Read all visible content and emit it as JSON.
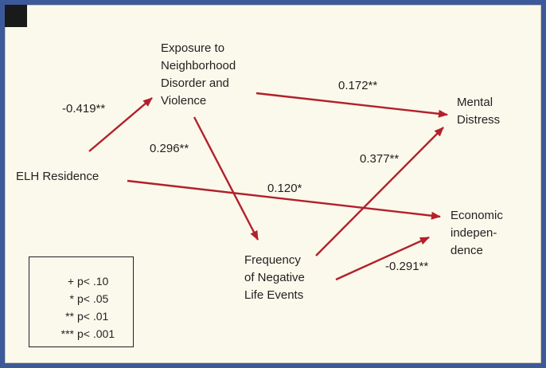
{
  "nodes": {
    "elh_residence": {
      "lines": [
        "ELH Residence"
      ]
    },
    "exposure": {
      "lines": [
        "Exposure to",
        "Neighborhood",
        "Disorder and",
        "Violence"
      ]
    },
    "mental_distress": {
      "lines": [
        "Mental",
        "Distress"
      ]
    },
    "negative_events": {
      "lines": [
        "Frequency",
        "of Negative",
        "Life Events"
      ]
    },
    "economic_independence": {
      "lines": [
        "Economic",
        "indepen-",
        "dence"
      ]
    }
  },
  "edges": [
    {
      "from": "ELH Residence",
      "to": "Exposure to Neighborhood Disorder and Violence",
      "coefficient": "-0.419**"
    },
    {
      "from": "Exposure to Neighborhood Disorder and Violence",
      "to": "Mental Distress",
      "coefficient": "0.172**"
    },
    {
      "from": "Exposure to Neighborhood Disorder and Violence",
      "to": "Frequency of Negative Life Events",
      "coefficient": "0.296**"
    },
    {
      "from": "ELH Residence",
      "to": "Economic independence",
      "coefficient": "0.120*"
    },
    {
      "from": "Frequency of Negative Life Events",
      "to": "Mental Distress",
      "coefficient": "0.377**"
    },
    {
      "from": "Frequency of Negative Life Events",
      "to": "Economic independence",
      "coefficient": "-0.291**"
    }
  ],
  "legend": [
    {
      "symbol": "+",
      "text": "p< .10"
    },
    {
      "symbol": "*",
      "text": "p< .05"
    },
    {
      "symbol": "**",
      "text": "p< .01"
    },
    {
      "symbol": "***",
      "text": "p< .001"
    }
  ],
  "colors": {
    "arrow": "#b3202b",
    "background": "#fbf9ec",
    "border": "#3c5a9a",
    "text": "#231f20"
  }
}
